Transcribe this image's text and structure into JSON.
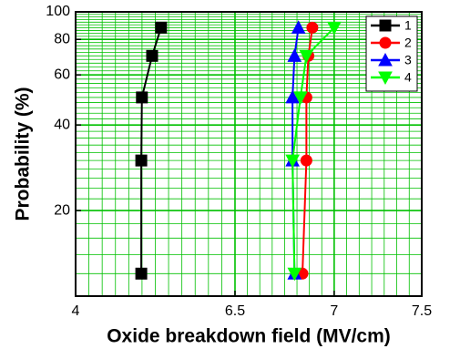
{
  "chart_data": {
    "type": "line",
    "x_label": "Oxide breakdown field (MV/cm)",
    "y_label": "Probability (%)",
    "xlim": [
      4,
      7.5
    ],
    "xticks": [
      4,
      6.5,
      7,
      7.5
    ],
    "ylim": [
      10,
      100
    ],
    "yticks": [
      20,
      40,
      60,
      80,
      100
    ],
    "yscale": "log",
    "grid": true,
    "grid_color": "#00c000",
    "legend": "upper right",
    "series": [
      {
        "name": "1",
        "color": "#000000",
        "marker": "square",
        "x": [
          5.03,
          5.03,
          5.04,
          5.2,
          5.34
        ],
        "values": [
          12,
          30,
          50,
          70,
          88
        ]
      },
      {
        "name": "2",
        "color": "#ff0000",
        "marker": "circle",
        "x": [
          6.84,
          6.86,
          6.86,
          6.87,
          6.89
        ],
        "values": [
          12,
          30,
          50,
          70,
          88
        ]
      },
      {
        "name": "3",
        "color": "#0000ff",
        "marker": "triangle-up",
        "x": [
          6.8,
          6.79,
          6.79,
          6.8,
          6.82
        ],
        "values": [
          12,
          30,
          50,
          70,
          88
        ]
      },
      {
        "name": "4",
        "color": "#00ff00",
        "marker": "triangle-down",
        "x": [
          6.8,
          6.79,
          6.83,
          6.86,
          7.0
        ],
        "values": [
          12,
          30,
          50,
          70,
          88
        ]
      }
    ]
  }
}
